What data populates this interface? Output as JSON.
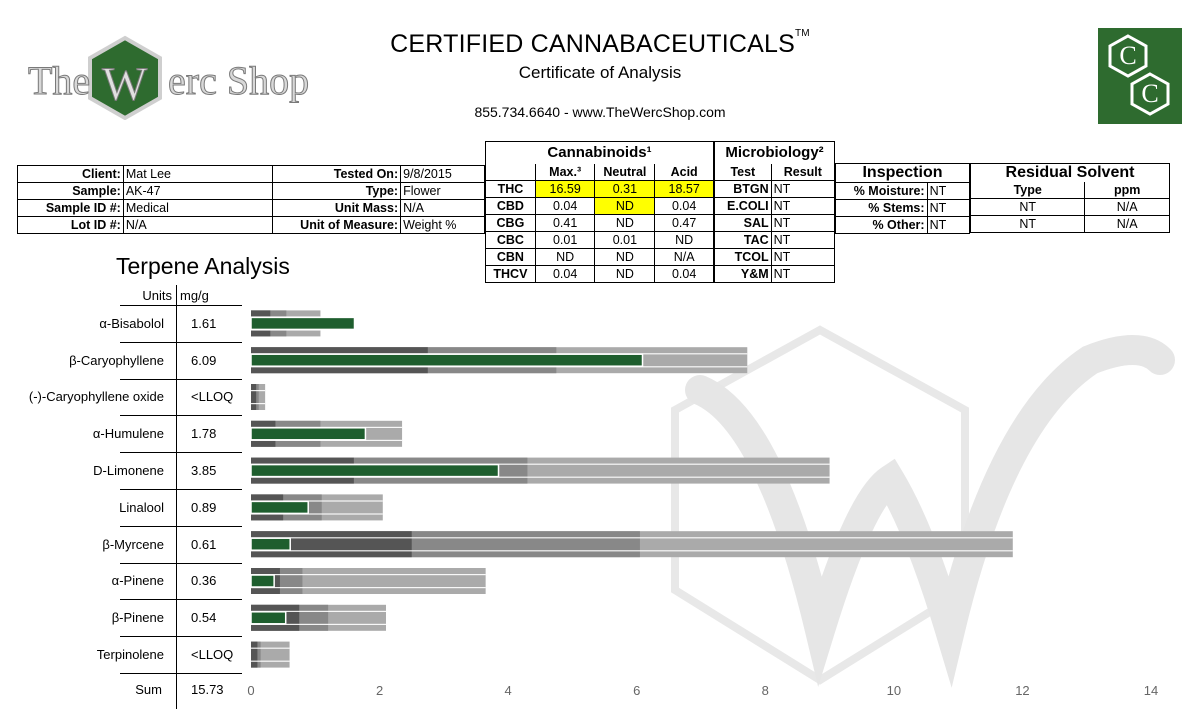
{
  "header": {
    "title": "CERTIFIED CANNABACEUTICALS",
    "title_tm": "TM",
    "subtitle": "Certificate of Analysis",
    "contact": "855.734.6640 - www.TheWercShop.com",
    "logo_text": "The Werc Shop",
    "logo_right_letters": [
      "C",
      "C"
    ]
  },
  "client_info": {
    "client_label": "Client:",
    "client": "Mat Lee",
    "tested_label": "Tested On:",
    "tested": "9/8/2015",
    "sample_label": "Sample:",
    "sample": "AK-47",
    "type_label": "Type:",
    "type": "Flower",
    "sampleid_label": "Sample ID #:",
    "sampleid": "Medical",
    "unitmass_label": "Unit Mass:",
    "unitmass": "N/A",
    "lotid_label": "Lot ID #:",
    "lotid": "N/A",
    "uom_label": "Unit of Measure:",
    "uom": "Weight %"
  },
  "cannabinoids": {
    "title": "Cannabinoids¹",
    "headers": [
      "Max.³",
      "Neutral",
      "Acid"
    ],
    "rows": [
      {
        "name": "THC",
        "max": "16.59",
        "neutral": "0.31",
        "acid": "18.57"
      },
      {
        "name": "CBD",
        "max": "0.04",
        "neutral": "ND",
        "acid": "0.04"
      },
      {
        "name": "CBG",
        "max": "0.41",
        "neutral": "ND",
        "acid": "0.47"
      },
      {
        "name": "CBC",
        "max": "0.01",
        "neutral": "0.01",
        "acid": "ND"
      },
      {
        "name": "CBN",
        "max": "ND",
        "neutral": "ND",
        "acid": "N/A"
      },
      {
        "name": "THCV",
        "max": "0.04",
        "neutral": "ND",
        "acid": "0.04"
      }
    ],
    "highlight_color": "#ffff00"
  },
  "microbiology": {
    "title": "Microbiology²",
    "headers": [
      "Test",
      "Result"
    ],
    "rows": [
      {
        "test": "BTGN",
        "result": "NT"
      },
      {
        "test": "E.COLI",
        "result": "NT"
      },
      {
        "test": "SAL",
        "result": "NT"
      },
      {
        "test": "TAC",
        "result": "NT"
      },
      {
        "test": "TCOL",
        "result": "NT"
      },
      {
        "test": "Y&M",
        "result": "NT"
      }
    ]
  },
  "inspection": {
    "title": "Inspection",
    "rows": [
      {
        "label": "% Moisture:",
        "value": "NT"
      },
      {
        "label": "% Stems:",
        "value": "NT"
      },
      {
        "label": "% Other:",
        "value": "NT"
      }
    ]
  },
  "residual_solvent": {
    "title": "Residual Solvent",
    "headers": [
      "Type",
      "ppm"
    ],
    "rows": [
      {
        "type": "NT",
        "ppm": "N/A"
      },
      {
        "type": "NT",
        "ppm": "N/A"
      }
    ]
  },
  "terpene": {
    "title": "Terpene Analysis",
    "units_label": "Units",
    "units_value": "mg/g",
    "sum_label": "Sum",
    "sum_value": "15.73"
  },
  "chart_data": {
    "type": "bar",
    "orientation": "horizontal",
    "categories": [
      "α-Bisabolol",
      "β-Caryophyllene",
      "(-)-Caryophyllene oxide",
      "α-Humulene",
      "D-Limonene",
      "Linalool",
      "β-Myrcene",
      "α-Pinene",
      "β-Pinene",
      "Terpinolene"
    ],
    "value_labels": [
      "1.61",
      "6.09",
      "<LLOQ",
      "1.78",
      "3.85",
      "0.89",
      "0.61",
      "0.36",
      "0.54",
      "<LLOQ"
    ],
    "series": [
      {
        "values": [
          1.61,
          6.09,
          0,
          1.78,
          3.85,
          0.89,
          0.61,
          0.36,
          0.54,
          0
        ],
        "color": "#1e5e2e"
      }
    ],
    "reference_ranges": [
      [
        0.3,
        0.55,
        1.08
      ],
      [
        2.75,
        4.75,
        7.72
      ],
      [
        0.08,
        0.12,
        0.22
      ],
      [
        0.38,
        1.08,
        2.35
      ],
      [
        1.6,
        4.3,
        9.0
      ],
      [
        0.5,
        1.1,
        2.05
      ],
      [
        2.5,
        6.05,
        11.85
      ],
      [
        0.45,
        0.8,
        3.65
      ],
      [
        0.75,
        1.2,
        2.1
      ],
      [
        0.1,
        0.15,
        0.6
      ]
    ],
    "range_colors": [
      "#555555",
      "#888888",
      "#aaaaaa"
    ],
    "xlim": [
      0,
      14
    ],
    "xticks": [
      0,
      2,
      4,
      6,
      8,
      10,
      12,
      14
    ],
    "grid": false
  }
}
